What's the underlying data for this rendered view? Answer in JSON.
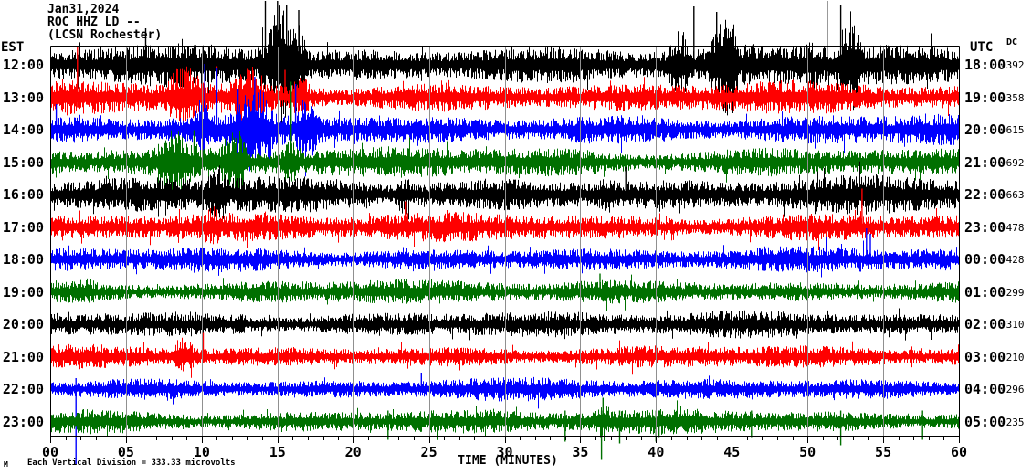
{
  "header": {
    "date": "Jan31,2024",
    "station": "ROC HHZ LD --",
    "location": "(LCSN Rochester)"
  },
  "axes": {
    "left_label": "EST",
    "right_label": "UTC",
    "dc_label": "DC",
    "xlabel": "TIME (MINUTES)",
    "x_ticks": [
      "00",
      "05",
      "10",
      "15",
      "20",
      "25",
      "30",
      "35",
      "40",
      "45",
      "50",
      "55",
      "60"
    ],
    "x_minor_tick_minutes": 1,
    "x_major_tick_minutes": 5,
    "x_range_minutes": [
      0,
      60
    ]
  },
  "footer": {
    "scale_text": "Each Vertical Division =  333.33 microvolts",
    "mark": "M"
  },
  "colors": {
    "background": "#ffffff",
    "axis": "#000000",
    "grid": "#909090",
    "trace": {
      "black": "#000000",
      "red": "#ff0000",
      "blue": "#0000ff",
      "green": "#007000"
    }
  },
  "chart_data": {
    "type": "helicorder-seismogram",
    "description": "12 hourly traces of continuous seismic noise, one hour per line, colors cycling black/red/blue/green. Amplitudes in px (half-height); spikes are [minute, amplitude] with negative = downward.",
    "grid": "vertical gray lines every 5 minutes",
    "rows": [
      {
        "est": "12:00",
        "utc": "18:00",
        "dc": "-392",
        "color": "black",
        "base": 18,
        "bursts": [
          [
            3,
            6.5,
            24
          ],
          [
            13,
            17.5,
            55
          ],
          [
            41,
            45.5,
            50
          ],
          [
            46.5,
            48,
            30
          ],
          [
            50,
            53.5,
            55
          ]
        ],
        "spikes": [
          [
            6.3,
            40
          ],
          [
            14.2,
            70
          ],
          [
            15.0,
            71
          ],
          [
            15.6,
            65
          ],
          [
            16.4,
            60
          ],
          [
            42.5,
            64
          ],
          [
            44,
            58
          ],
          [
            51.3,
            70
          ],
          [
            52.2,
            66
          ]
        ]
      },
      {
        "est": "13:00",
        "utc": "19:00",
        "dc": "-358",
        "color": "red",
        "base": 14,
        "bursts": [
          [
            0,
            3,
            20
          ],
          [
            7,
            17,
            28
          ]
        ],
        "spikes": [
          [
            1.8,
            55
          ],
          [
            11,
            34
          ],
          [
            15.5,
            30
          ]
        ]
      },
      {
        "est": "14:00",
        "utc": "20:00",
        "dc": "-615",
        "color": "blue",
        "base": 14,
        "bursts": [
          [
            9.5,
            17.5,
            40
          ]
        ],
        "spikes": [
          [
            0.4,
            28
          ],
          [
            10.2,
            72
          ],
          [
            11.0,
            68
          ],
          [
            12.4,
            45
          ],
          [
            13.5,
            58
          ],
          [
            16.2,
            50
          ]
        ]
      },
      {
        "est": "15:00",
        "utc": "21:00",
        "dc": "-692",
        "color": "green",
        "base": 14,
        "bursts": [
          [
            5.5,
            13,
            30
          ],
          [
            14,
            16.5,
            26
          ]
        ],
        "spikes": [
          [
            9.5,
            35
          ],
          [
            15.9,
            88
          ]
        ]
      },
      {
        "est": "16:00",
        "utc": "22:00",
        "dc": "-663",
        "color": "black",
        "base": 16,
        "bursts": [
          [
            8,
            12,
            22
          ],
          [
            20,
            24,
            20
          ],
          [
            36,
            39,
            18
          ]
        ],
        "spikes": [
          [
            38,
            30
          ]
        ]
      },
      {
        "est": "17:00",
        "utc": "23:00",
        "dc": "-478",
        "color": "red",
        "base": 13,
        "bursts": [
          [
            10,
            14,
            20
          ]
        ],
        "spikes": [
          [
            23.5,
            28
          ],
          [
            53.6,
            42
          ]
        ]
      },
      {
        "est": "18:00",
        "utc": "00:00",
        "dc": "-428",
        "color": "blue",
        "base": 11,
        "bursts": [],
        "spikes": [
          [
            53.9,
            34
          ],
          [
            54.15,
            28
          ]
        ]
      },
      {
        "est": "19:00",
        "utc": "01:00",
        "dc": "-299",
        "color": "green",
        "base": 11,
        "bursts": [
          [
            0,
            3,
            15
          ]
        ],
        "spikes": [
          [
            36.3,
            20
          ]
        ]
      },
      {
        "est": "20:00",
        "utc": "02:00",
        "dc": "-310",
        "color": "black",
        "base": 12,
        "bursts": [
          [
            10,
            13,
            16
          ]
        ],
        "spikes": []
      },
      {
        "est": "21:00",
        "utc": "03:00",
        "dc": "-210",
        "color": "red",
        "base": 10,
        "bursts": [
          [
            8,
            11.5,
            18
          ]
        ],
        "spikes": [
          [
            10.1,
            26
          ]
        ]
      },
      {
        "est": "22:00",
        "utc": "04:00",
        "dc": "-296",
        "color": "blue",
        "base": 10,
        "bursts": [],
        "spikes": [
          [
            1.7,
            -82
          ],
          [
            24.5,
            18
          ]
        ]
      },
      {
        "est": "23:00",
        "utc": "05:00",
        "dc": "-235",
        "color": "green",
        "base": 11,
        "bursts": [
          [
            35.8,
            37.2,
            18
          ]
        ],
        "spikes": [
          [
            22.3,
            -20
          ],
          [
            34,
            -22
          ],
          [
            36.4,
            -42
          ],
          [
            36.5,
            26
          ],
          [
            37.6,
            -24
          ],
          [
            40,
            -22
          ],
          [
            40.2,
            -18
          ],
          [
            46.3,
            -18
          ],
          [
            52.2,
            -26
          ],
          [
            57.6,
            -20
          ]
        ]
      }
    ]
  }
}
